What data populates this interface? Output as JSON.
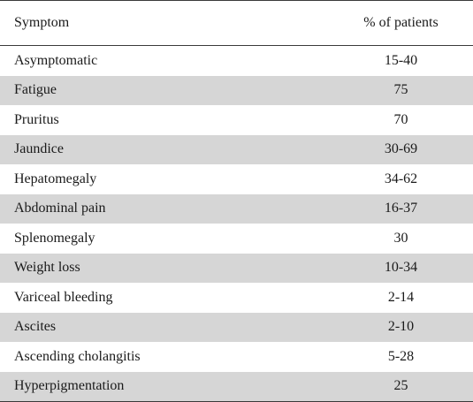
{
  "table": {
    "headers": {
      "symptom": "Symptom",
      "percent": "% of patients"
    },
    "rows": [
      {
        "symptom": "Asymptomatic",
        "percent": "15-40"
      },
      {
        "symptom": "Fatigue",
        "percent": "75"
      },
      {
        "symptom": "Pruritus",
        "percent": "70"
      },
      {
        "symptom": "Jaundice",
        "percent": "30-69"
      },
      {
        "symptom": "Hepatomegaly",
        "percent": "34-62"
      },
      {
        "symptom": "Abdominal pain",
        "percent": "16-37"
      },
      {
        "symptom": "Splenomegaly",
        "percent": "30"
      },
      {
        "symptom": "Weight loss",
        "percent": "10-34"
      },
      {
        "symptom": "Variceal bleeding",
        "percent": "2-14"
      },
      {
        "symptom": "Ascites",
        "percent": "2-10"
      },
      {
        "symptom": "Ascending cholangitis",
        "percent": "5-28"
      },
      {
        "symptom": "Hyperpigmentation",
        "percent": "25"
      }
    ]
  },
  "colors": {
    "stripe": "#d6d6d6",
    "rule": "#3a3a3a"
  }
}
